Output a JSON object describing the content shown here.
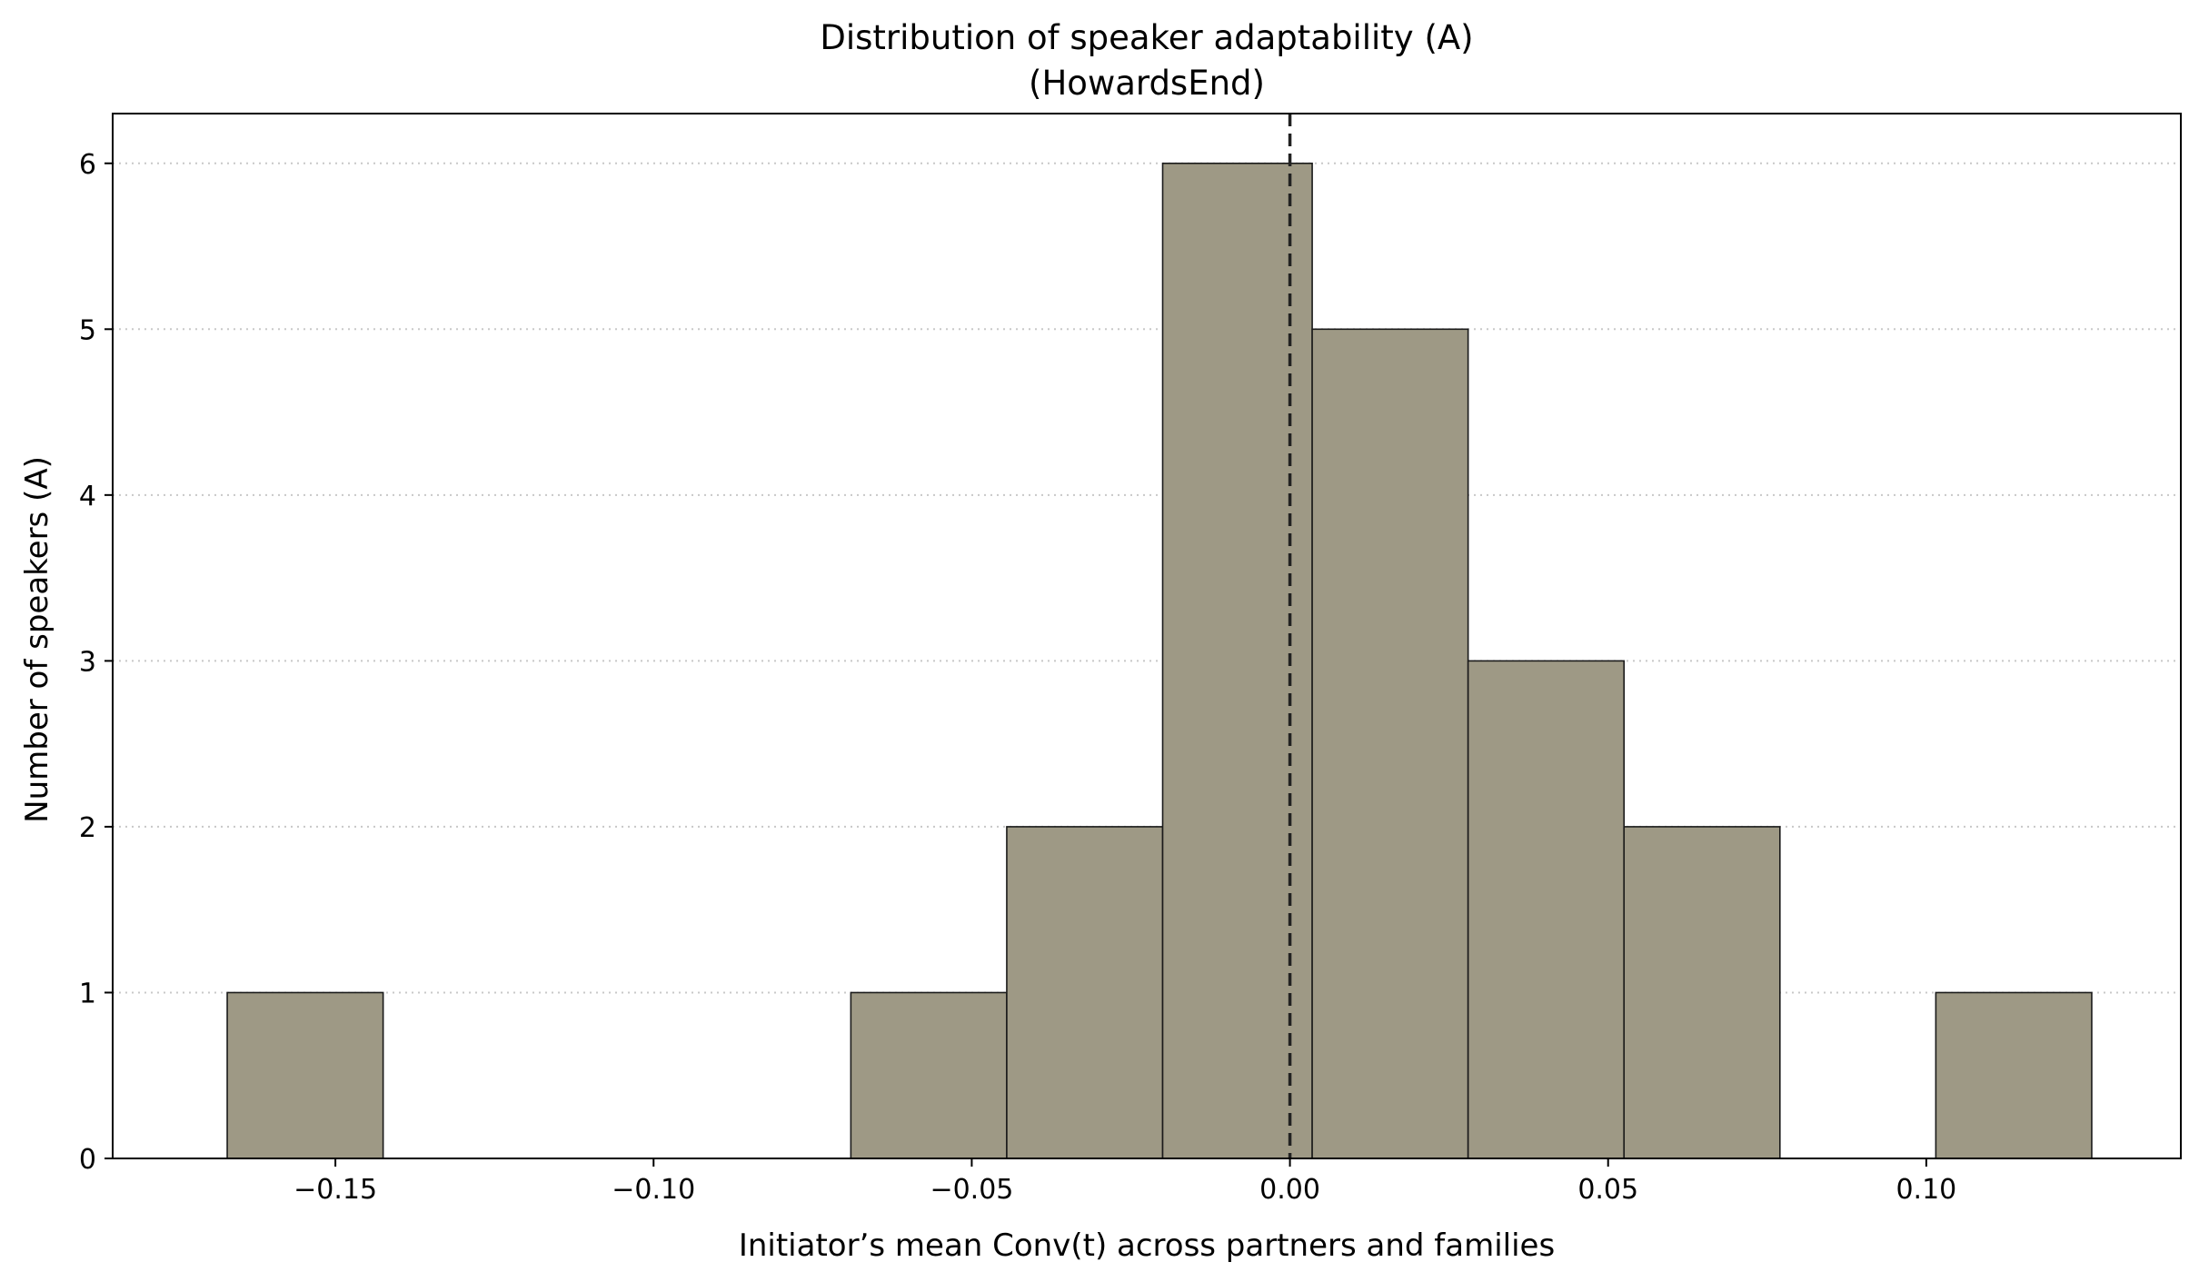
{
  "chart_data": {
    "type": "bar",
    "title_lines": [
      "Distribution of speaker adaptability (A)",
      "(HowardsEnd)"
    ],
    "xlabel": "Initiator’s mean Conv(t) across partners and families",
    "ylabel": "Number of speakers (A)",
    "xlim": [
      -0.185,
      0.14
    ],
    "ylim": [
      0,
      6.3
    ],
    "bin_edges": [
      -0.167,
      -0.1425,
      -0.118,
      -0.0935,
      -0.069,
      -0.0445,
      -0.02,
      0.0035,
      0.028,
      0.0525,
      0.077,
      0.1015,
      0.126
    ],
    "values": [
      1,
      0,
      0,
      0,
      1,
      2,
      6,
      5,
      3,
      2,
      0,
      1
    ],
    "xticks": [
      -0.15,
      -0.1,
      -0.05,
      0.0,
      0.05,
      0.1
    ],
    "xtick_labels": [
      "−0.15",
      "−0.10",
      "−0.05",
      "0.00",
      "0.05",
      "0.10"
    ],
    "yticks": [
      0,
      1,
      2,
      3,
      4,
      5,
      6
    ],
    "ytick_labels": [
      "0",
      "1",
      "2",
      "3",
      "4",
      "5",
      "6"
    ],
    "reference_line_x": 0.0,
    "grid": "y-dotted",
    "colors": {
      "bar_fill": "#9e9985",
      "bar_edge": "#1a1a1a",
      "grid": "#c8c8c8",
      "axis": "#000000",
      "reference_line": "#222222"
    }
  }
}
